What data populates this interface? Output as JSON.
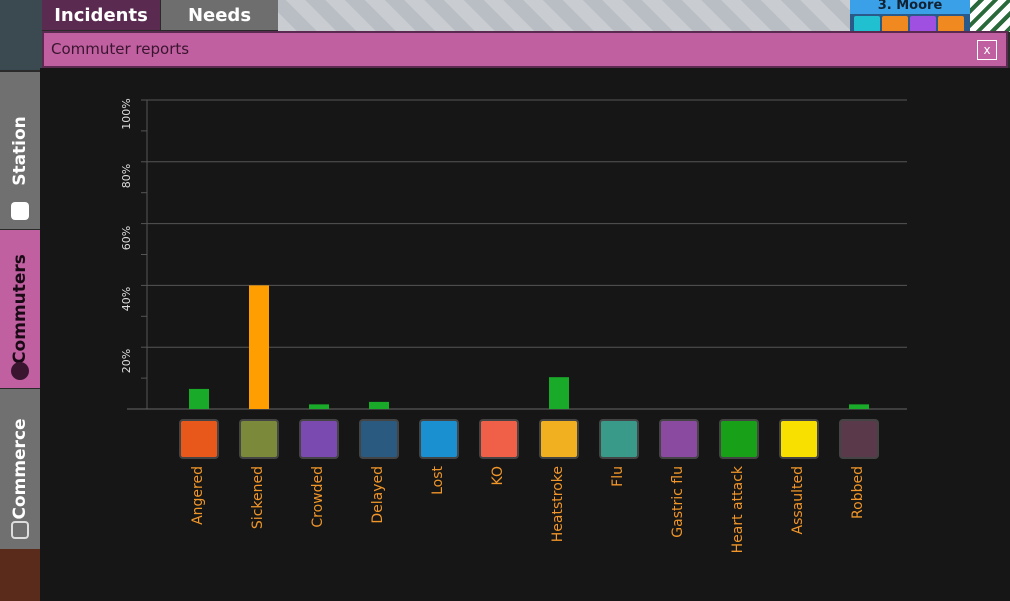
{
  "top_tabs": [
    {
      "label": "Incidents",
      "active": true
    },
    {
      "label": "Needs",
      "active": false
    }
  ],
  "scene_label": "3. Moore",
  "panel": {
    "title": "Commuter reports",
    "close_label": "x"
  },
  "sidebar": [
    {
      "label": "Station",
      "icon": "station-icon",
      "active": false
    },
    {
      "label": "Commuters",
      "icon": "commuter-search-icon",
      "active": true
    },
    {
      "label": "Commerce",
      "icon": "shopping-cart-icon",
      "active": false
    }
  ],
  "colors": {
    "accent": "#c060a0",
    "bar_normal": "#1aaa2a",
    "bar_high": "#ff9e00",
    "label": "#f0962a"
  },
  "chart_data": {
    "type": "bar",
    "categories": [
      "Angered",
      "Sickened",
      "Crowded",
      "Delayed",
      "Lost",
      "KO",
      "Heatstroke",
      "Flu",
      "Gastric flu",
      "Heart attack",
      "Assaulted",
      "Robbed"
    ],
    "icons": [
      "angry-face-icon",
      "virus-icon",
      "crowd-icon",
      "stopwatch-icon",
      "question-head-icon",
      "ko-icon",
      "sun-icon",
      "flu-icon",
      "germ-icon",
      "heart-ecg-icon",
      "fist-icon",
      "robber-mask-icon"
    ],
    "icon_colors": [
      "#e8581a",
      "#7a8a3a",
      "#7a4ab0",
      "#2a5a80",
      "#1a90d0",
      "#f06048",
      "#f0b020",
      "#3a9a8a",
      "#8a4aa0",
      "#18a018",
      "#f8e000",
      "#5a3a4a"
    ],
    "values": [
      6.5,
      40,
      1.5,
      2.3,
      0,
      0,
      10.3,
      0,
      0,
      0,
      0,
      1.5
    ],
    "highlight": [
      false,
      true,
      false,
      false,
      false,
      false,
      false,
      false,
      false,
      false,
      false,
      false
    ],
    "ylim": [
      0,
      100
    ],
    "yticks": [
      "0%",
      "20%",
      "40%",
      "60%",
      "80%",
      "100%"
    ],
    "ytick_values": [
      0,
      20,
      40,
      60,
      80,
      100
    ],
    "grid": true
  }
}
